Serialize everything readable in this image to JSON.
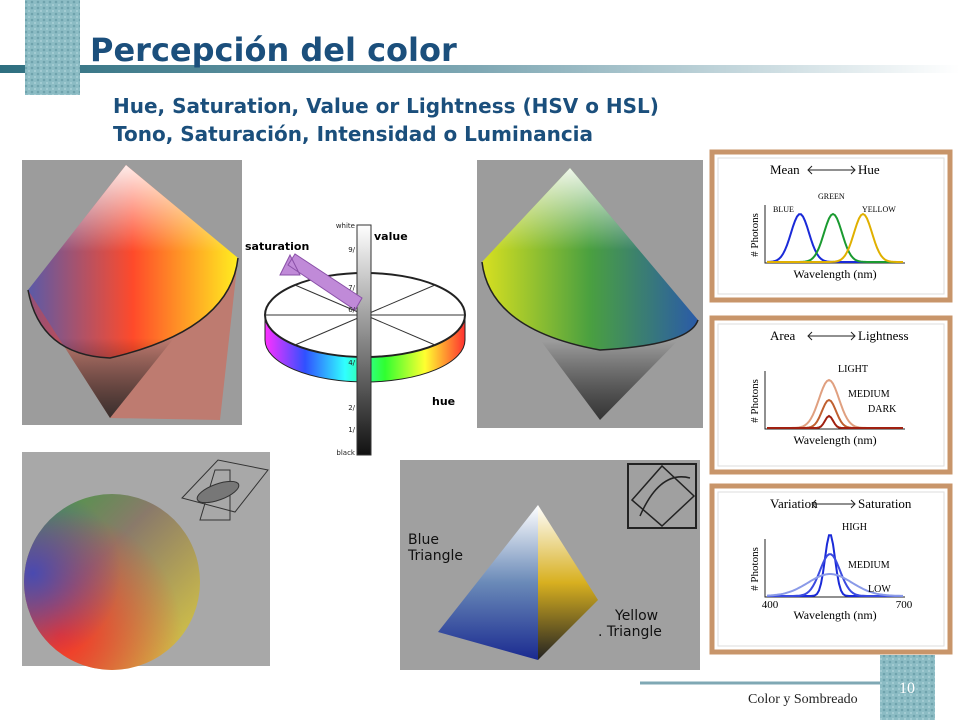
{
  "slide": {
    "title": "Percepción del color",
    "subtitle": [
      "Hue, Saturation, Value or Lightness (HSV o HSL)",
      "Tono, Saturación, Intensidad o Luminancia"
    ],
    "diagram": {
      "saturation": "saturation",
      "value": "value",
      "hue": "hue",
      "scale": [
        "white",
        "9/",
        "7/",
        "6/",
        "4/",
        "2/",
        "1/",
        "black"
      ]
    },
    "pyramid": {
      "left": "Blue Triangle",
      "right": "Yellow . Triangle"
    },
    "panels": [
      {
        "left": "Mean",
        "right": "Hue",
        "curves": [
          "BLUE",
          "GREEN",
          "YELLOW"
        ],
        "y_label": "# Photons",
        "x_label": "Wavelength (nm)"
      },
      {
        "left": "Area",
        "right": "Lightness",
        "curves": [
          "LIGHT",
          "MEDIUM",
          "DARK"
        ],
        "y_label": "# Photons",
        "x_label": "Wavelength (nm)"
      },
      {
        "left": "Variation",
        "right": "Saturation",
        "curves": [
          "HIGH",
          "MEDIUM",
          "LOW"
        ],
        "y_label": "# Photons",
        "x_label": "Wavelength (nm)",
        "x_ticks": [
          "400",
          "700"
        ]
      }
    ],
    "footer": "Color y Sombreado",
    "page": "10"
  }
}
